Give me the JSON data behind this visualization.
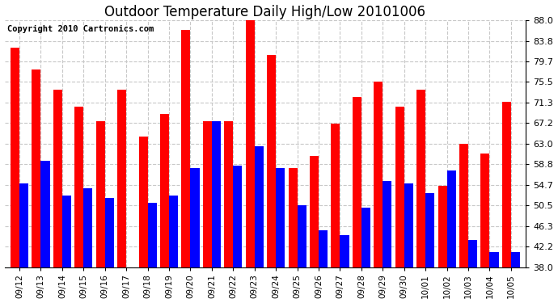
{
  "title": "Outdoor Temperature Daily High/Low 20101006",
  "copyright": "Copyright 2010 Cartronics.com",
  "labels": [
    "09/12",
    "09/13",
    "09/14",
    "09/15",
    "09/16",
    "09/17",
    "09/18",
    "09/19",
    "09/20",
    "09/21",
    "09/22",
    "09/23",
    "09/24",
    "09/25",
    "09/26",
    "09/27",
    "09/28",
    "09/29",
    "09/30",
    "10/01",
    "10/02",
    "10/03",
    "10/04",
    "10/05"
  ],
  "highs": [
    82.5,
    78.0,
    74.0,
    70.5,
    67.5,
    74.0,
    64.5,
    69.0,
    86.0,
    67.5,
    67.5,
    88.5,
    81.0,
    58.0,
    60.5,
    67.0,
    72.5,
    75.5,
    70.5,
    74.0,
    54.5,
    63.0,
    61.0,
    71.5
  ],
  "lows": [
    55.0,
    59.5,
    52.5,
    54.0,
    52.0,
    38.0,
    51.0,
    52.5,
    58.0,
    67.5,
    58.5,
    62.5,
    58.0,
    50.5,
    45.5,
    44.5,
    50.0,
    55.5,
    55.0,
    53.0,
    57.5,
    43.5,
    41.0,
    41.0
  ],
  "high_color": "#ff0000",
  "low_color": "#0000ff",
  "bg_color": "#ffffff",
  "plot_bg": "#ffffff",
  "grid_color": "#c8c8c8",
  "ylim": [
    38.0,
    88.0
  ],
  "yticks": [
    38.0,
    42.2,
    46.3,
    50.5,
    54.7,
    58.8,
    63.0,
    67.2,
    71.3,
    75.5,
    79.7,
    83.8,
    88.0
  ],
  "title_fontsize": 12,
  "copyright_fontsize": 7.5,
  "bar_width": 0.42
}
